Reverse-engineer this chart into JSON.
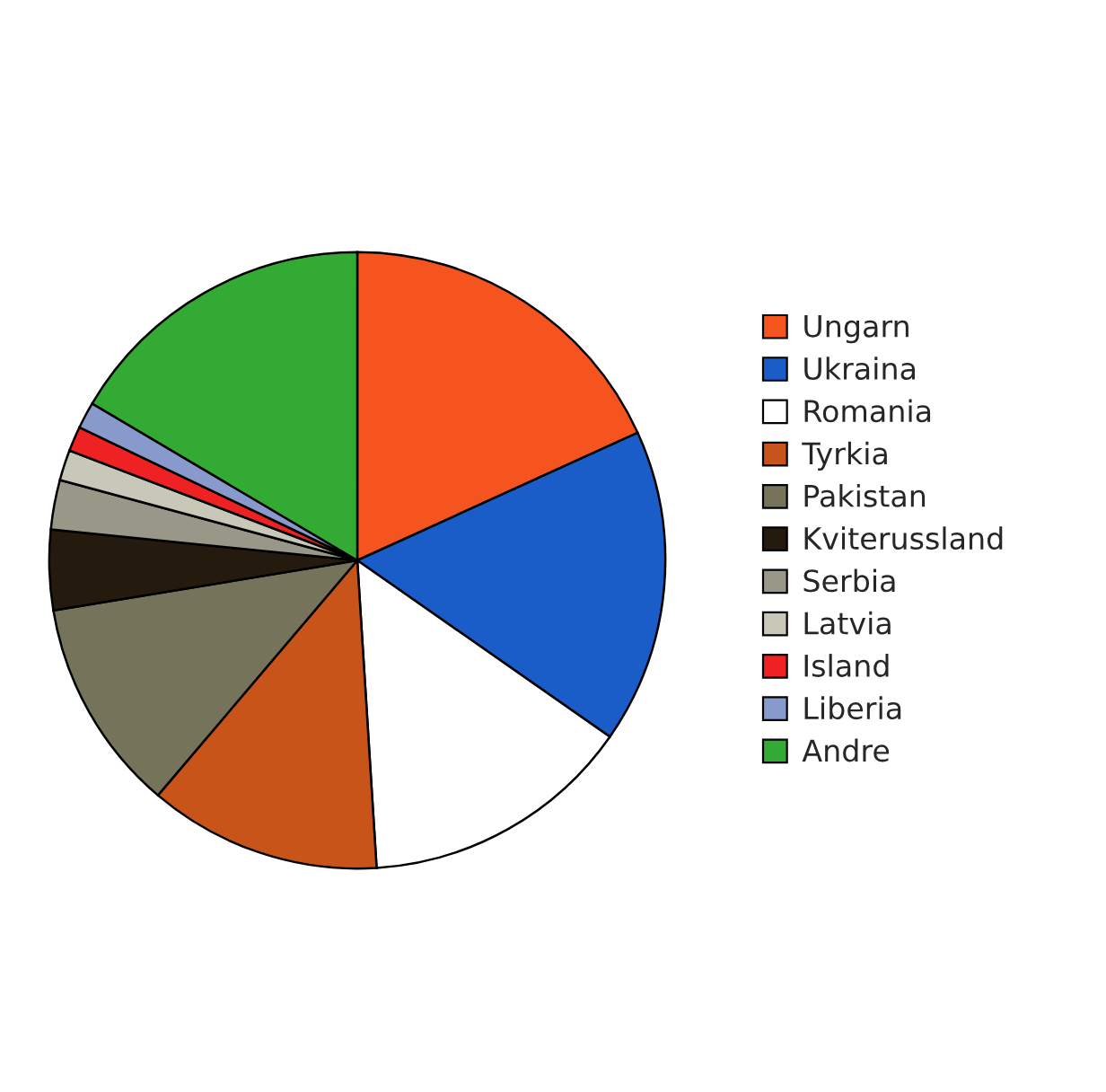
{
  "chart_data": {
    "type": "pie",
    "categories": [
      "Ungarn",
      "Ukraina",
      "Romania",
      "Tyrkia",
      "Pakistan",
      "Kviterussland",
      "Serbia",
      "Latvia",
      "Island",
      "Liberia",
      "Andre"
    ],
    "values": [
      18.2,
      16.5,
      14.3,
      12.2,
      11.2,
      4.2,
      2.6,
      1.6,
      1.3,
      1.4,
      16.5
    ],
    "colors": [
      "#f5541e",
      "#1a5dc8",
      "#ffffff",
      "#c9541a",
      "#75745a",
      "#241a0e",
      "#999888",
      "#c8c8b8",
      "#ee2222",
      "#8899cc",
      "#33aa33"
    ],
    "legend": "right"
  }
}
